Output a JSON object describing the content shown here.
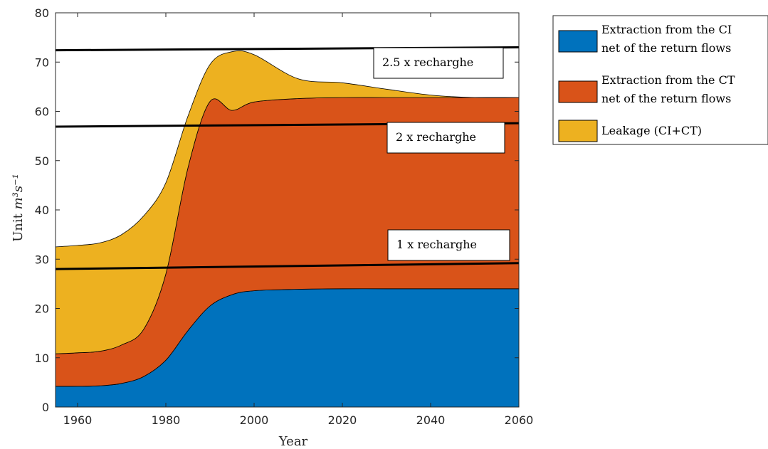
{
  "chart_data": {
    "type": "area",
    "stacked": true,
    "xlabel": "Year",
    "ylabel_prefix": "Unit ",
    "ylabel_unit": "m³s⁻¹",
    "xlim": [
      1955,
      2060
    ],
    "ylim": [
      0,
      80
    ],
    "x_ticks": [
      1960,
      1980,
      2000,
      2020,
      2040,
      2060
    ],
    "y_ticks": [
      0,
      10,
      20,
      30,
      40,
      50,
      60,
      70,
      80
    ],
    "grid": false,
    "legend_position": "outside right, top",
    "series": [
      {
        "name": "Extraction from the CI net of the return flows",
        "legend_lines": [
          "Extraction from the CI",
          "net of the return flows"
        ],
        "color": "#0072bd",
        "x": [
          1955,
          1960,
          1965,
          1970,
          1975,
          1980,
          1985,
          1990,
          1995,
          2000,
          2010,
          2020,
          2030,
          2040,
          2050,
          2060
        ],
        "values": [
          4.2,
          4.2,
          4.3,
          4.8,
          6.2,
          9.5,
          15.5,
          20.5,
          22.8,
          23.6,
          23.9,
          24,
          24,
          24,
          24,
          24
        ]
      },
      {
        "name": "Extraction from the CT net of the return flows",
        "legend_lines": [
          "Extraction from the CT",
          "net of the return flows"
        ],
        "color": "#d95319",
        "x": [
          1955,
          1960,
          1965,
          1970,
          1975,
          1980,
          1985,
          1990,
          1995,
          2000,
          2010,
          2020,
          2030,
          2040,
          2050,
          2060
        ],
        "values": [
          6.6,
          6.8,
          7.0,
          7.8,
          9.6,
          17.5,
          33.0,
          41.5,
          37.4,
          38.3,
          38.7,
          38.8,
          38.8,
          38.8,
          38.8,
          38.8
        ]
      },
      {
        "name": "Leakage (CI+CT)",
        "legend_lines": [
          "Leakage (CI+CT)"
        ],
        "color": "#edb120",
        "x": [
          1955,
          1960,
          1965,
          1970,
          1975,
          1980,
          1985,
          1990,
          1995,
          2000,
          2010,
          2020,
          2030,
          2040,
          2050,
          2060
        ],
        "values": [
          21.7,
          21.8,
          22.0,
          22.4,
          23.0,
          18.5,
          10.5,
          7.5,
          11.9,
          9.6,
          4.0,
          3.0,
          1.7,
          0.5,
          0,
          0
        ]
      }
    ],
    "reference_lines": [
      {
        "label": "1 x recharghe",
        "x": [
          1955,
          2060
        ],
        "y": [
          28.0,
          29.2
        ]
      },
      {
        "label": "2 x recharghe",
        "x": [
          1955,
          2060
        ],
        "y": [
          56.9,
          57.6
        ]
      },
      {
        "label": "2.5 x recharghe",
        "x": [
          1955,
          2060
        ],
        "y": [
          72.4,
          73.0
        ]
      }
    ]
  }
}
